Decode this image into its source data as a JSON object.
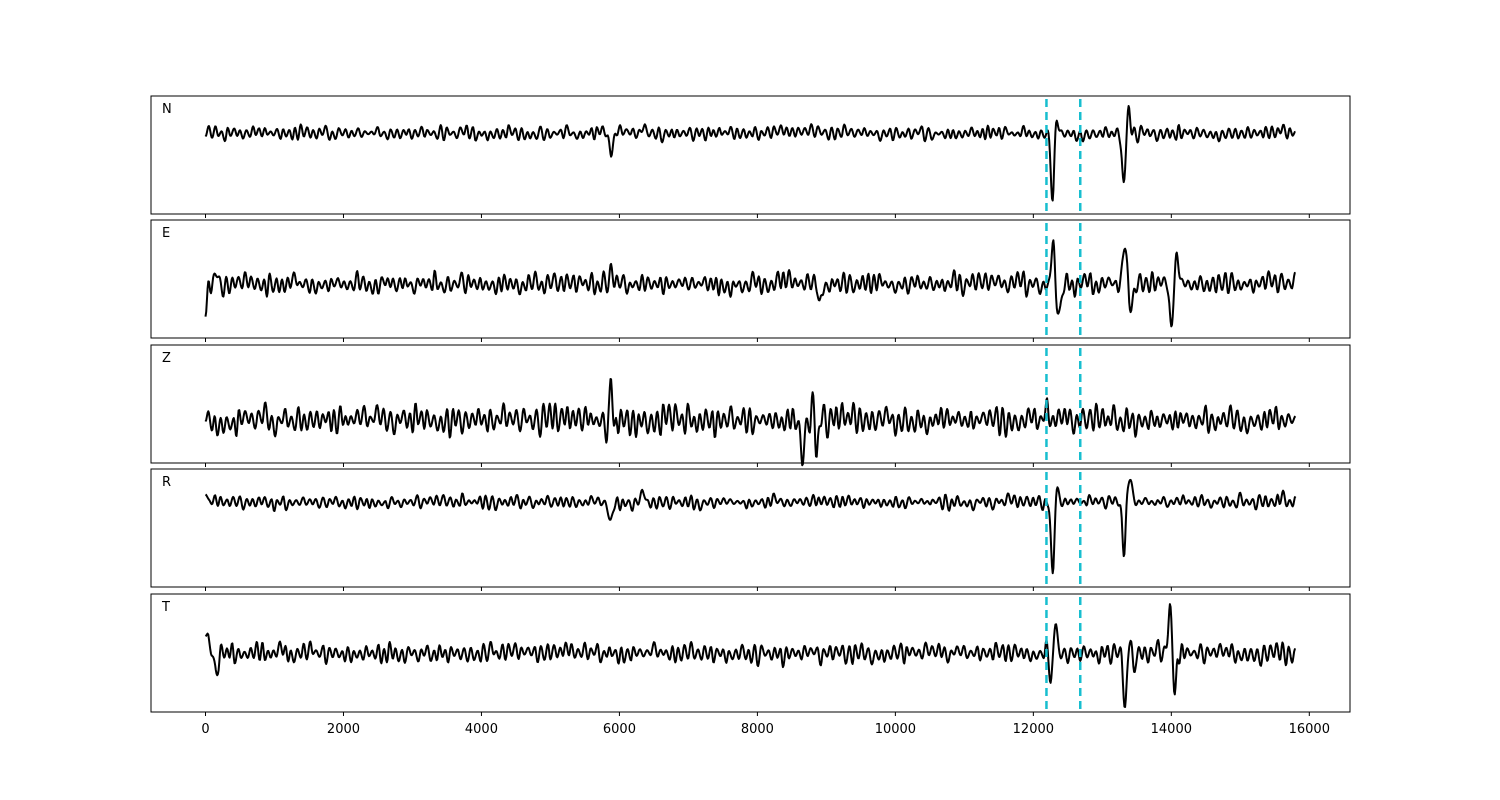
{
  "chart_data": {
    "type": "line",
    "xlim": [
      -790,
      16590
    ],
    "x_ticks": [
      0,
      2000,
      4000,
      6000,
      8000,
      10000,
      12000,
      14000,
      16000
    ],
    "x_tick_labels": [
      "0",
      "2000",
      "4000",
      "6000",
      "8000",
      "10000",
      "12000",
      "14000",
      "16000"
    ],
    "x_range": [
      0,
      15800
    ],
    "grid": false,
    "y_ticks_shown": false,
    "marker_lines": {
      "color": "#17becf",
      "style": "dashed",
      "x": [
        12190,
        12680
      ]
    },
    "line_color": "#000000",
    "panels": [
      {
        "label": "N",
        "ylim": [
          -1,
          1
        ],
        "baseline": 0.37,
        "noise_amplitude": 0.1,
        "events": [
          [
            5880,
            -0.35
          ],
          [
            6350,
            0.2
          ],
          [
            12280,
            -1.2
          ],
          [
            12330,
            0.35
          ],
          [
            13310,
            -0.85
          ],
          [
            13380,
            0.45
          ],
          [
            15620,
            0.12
          ]
        ]
      },
      {
        "label": "E",
        "ylim": [
          -1,
          1
        ],
        "baseline": -0.08,
        "noise_amplitude": 0.15,
        "events": [
          [
            0,
            -0.45
          ],
          [
            150,
            0.2
          ],
          [
            5880,
            0.25
          ],
          [
            8900,
            -0.3
          ],
          [
            12290,
            0.92
          ],
          [
            12330,
            -0.55
          ],
          [
            12390,
            -0.45
          ],
          [
            13320,
            0.7
          ],
          [
            13420,
            -0.35
          ],
          [
            14000,
            -0.75
          ],
          [
            14080,
            0.5
          ]
        ]
      },
      {
        "label": "Z",
        "ylim": [
          -1,
          1
        ],
        "baseline": -0.27,
        "noise_amplitude": 0.2,
        "events": [
          [
            5850,
            -0.45
          ],
          [
            5880,
            1.12
          ],
          [
            5910,
            -0.4
          ],
          [
            8650,
            -0.5
          ],
          [
            8820,
            0.35
          ],
          [
            8860,
            -0.55
          ],
          [
            12200,
            0.25
          ]
        ]
      },
      {
        "label": "R",
        "ylim": [
          -1,
          1
        ],
        "baseline": 0.44,
        "noise_amplitude": 0.1,
        "events": [
          [
            0,
            0.15
          ],
          [
            5880,
            -0.35
          ],
          [
            6350,
            0.2
          ],
          [
            12280,
            -1.27
          ],
          [
            12330,
            0.3
          ],
          [
            13310,
            -0.8
          ],
          [
            13400,
            0.4
          ],
          [
            15620,
            0.15
          ]
        ]
      },
      {
        "label": "T",
        "ylim": [
          -1,
          1
        ],
        "baseline": 0.0,
        "noise_amplitude": 0.15,
        "events": [
          [
            0,
            0.44
          ],
          [
            150,
            -0.25
          ],
          [
            12260,
            -0.45
          ],
          [
            12320,
            0.55
          ],
          [
            13330,
            -0.8
          ],
          [
            13420,
            0.4
          ],
          [
            13450,
            -0.55
          ],
          [
            13980,
            0.85
          ],
          [
            14050,
            -0.65
          ]
        ]
      }
    ]
  }
}
